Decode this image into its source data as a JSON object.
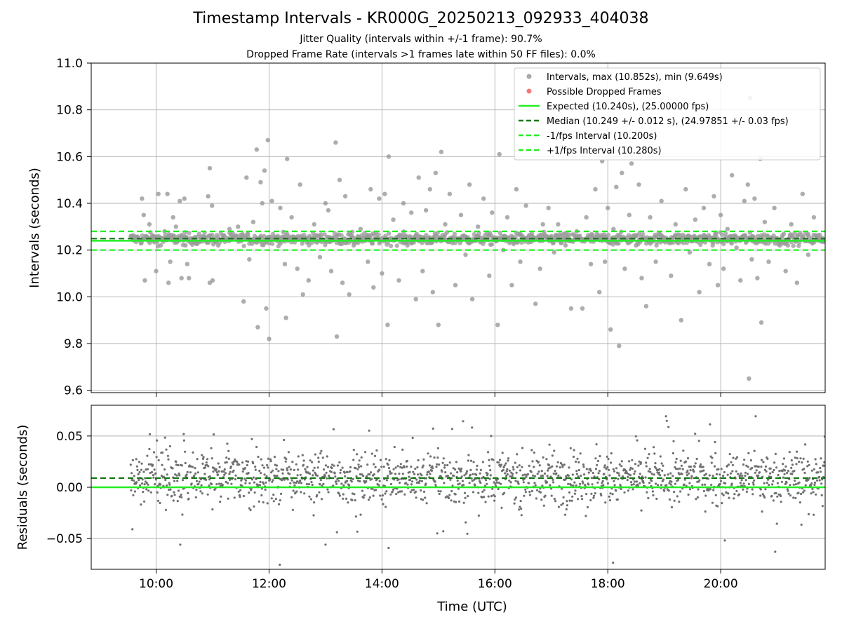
{
  "title": "Timestamp Intervals - KR000G_20250213_092933_404038",
  "subtitle_line1": "Jitter Quality (intervals within +/-1 frame): 90.7%",
  "subtitle_line2": "Dropped Frame Rate (intervals >1 frames late within 50 FF files): 0.0%",
  "colors": {
    "intervals": "#999999",
    "dropped": "#f06060",
    "expected": "#22ee22",
    "median": "#137a13",
    "fps_interval": "#22ee22",
    "residuals": "#707070"
  },
  "chart_data": [
    {
      "type": "scatter",
      "name": "intervals-panel",
      "ylabel": "Intervals (seconds)",
      "xlabel": "",
      "x_unit": "hours UTC",
      "xlim": [
        8.85,
        21.85
      ],
      "ylim": [
        9.59,
        11.0
      ],
      "x_ticks": [
        10,
        12,
        14,
        16,
        18,
        20
      ],
      "x_tick_labels": [
        "10:00",
        "12:00",
        "14:00",
        "16:00",
        "18:00",
        "20:00"
      ],
      "y_ticks": [
        9.6,
        9.8,
        10.0,
        10.2,
        10.4,
        10.6,
        10.8,
        11.0
      ],
      "y_tick_labels": [
        "9.6",
        "9.8",
        "10.0",
        "10.2",
        "10.4",
        "10.6",
        "10.8",
        "11.0"
      ],
      "grid": true,
      "legend_position": "top-right",
      "legend": [
        {
          "label": "Intervals, max (10.852s), min (9.649s)",
          "kind": "dot",
          "color": "#999999"
        },
        {
          "label": "Possible Dropped Frames",
          "kind": "dot",
          "color": "#f06060"
        },
        {
          "label": "Expected (10.240s), (25.00000 fps)",
          "kind": "line",
          "color": "#22ee22",
          "dash": false
        },
        {
          "label": "Median (10.249 +/- 0.012 s), (24.97851 +/- 0.03 fps)",
          "kind": "line",
          "color": "#137a13",
          "dash": true
        },
        {
          "label": "-1/fps Interval (10.200s)",
          "kind": "line",
          "color": "#22ee22",
          "dash": true
        },
        {
          "label": "+1/fps Interval (10.280s)",
          "kind": "line",
          "color": "#22ee22",
          "dash": true
        }
      ],
      "reference_lines": {
        "expected": 10.24,
        "median": 10.249,
        "minus_fps": 10.2,
        "plus_fps": 10.28
      },
      "series_summary": {
        "x_start": 9.55,
        "x_end": 21.85,
        "max": 10.852,
        "min": 9.649,
        "dense_band": [
          10.215,
          10.28
        ]
      },
      "outliers": [
        [
          9.75,
          10.42
        ],
        [
          9.78,
          10.35
        ],
        [
          9.8,
          10.07
        ],
        [
          9.88,
          10.31
        ],
        [
          9.95,
          10.26
        ],
        [
          10.0,
          10.11
        ],
        [
          10.04,
          10.44
        ],
        [
          10.08,
          10.22
        ],
        [
          10.15,
          10.28
        ],
        [
          10.2,
          10.44
        ],
        [
          10.22,
          10.06
        ],
        [
          10.25,
          10.15
        ],
        [
          10.3,
          10.34
        ],
        [
          10.35,
          10.3
        ],
        [
          10.42,
          10.41
        ],
        [
          10.45,
          10.08
        ],
        [
          10.5,
          10.42
        ],
        [
          10.52,
          10.22
        ],
        [
          10.55,
          10.14
        ],
        [
          10.58,
          10.08
        ],
        [
          10.92,
          10.43
        ],
        [
          10.95,
          10.06
        ],
        [
          10.95,
          10.55
        ],
        [
          10.99,
          10.39
        ],
        [
          11.0,
          10.07
        ],
        [
          11.1,
          10.22
        ],
        [
          11.3,
          10.29
        ],
        [
          11.45,
          10.3
        ],
        [
          11.55,
          9.98
        ],
        [
          11.6,
          10.51
        ],
        [
          11.65,
          10.16
        ],
        [
          11.72,
          10.32
        ],
        [
          11.78,
          10.63
        ],
        [
          11.8,
          9.87
        ],
        [
          11.85,
          10.49
        ],
        [
          11.88,
          10.4
        ],
        [
          11.92,
          10.54
        ],
        [
          11.95,
          9.95
        ],
        [
          11.98,
          10.67
        ],
        [
          12.0,
          9.82
        ],
        [
          12.05,
          10.41
        ],
        [
          12.15,
          10.25
        ],
        [
          12.2,
          10.38
        ],
        [
          12.28,
          10.14
        ],
        [
          12.3,
          9.91
        ],
        [
          12.32,
          10.59
        ],
        [
          12.4,
          10.34
        ],
        [
          12.5,
          10.12
        ],
        [
          12.55,
          10.48
        ],
        [
          12.6,
          10.01
        ],
        [
          12.7,
          10.07
        ],
        [
          12.8,
          10.31
        ],
        [
          12.9,
          10.17
        ],
        [
          13.0,
          10.4
        ],
        [
          13.05,
          10.37
        ],
        [
          13.1,
          10.11
        ],
        [
          13.18,
          10.66
        ],
        [
          13.2,
          9.83
        ],
        [
          13.25,
          10.5
        ],
        [
          13.3,
          10.06
        ],
        [
          13.35,
          10.43
        ],
        [
          13.42,
          10.01
        ],
        [
          13.5,
          10.22
        ],
        [
          13.62,
          10.29
        ],
        [
          13.75,
          10.15
        ],
        [
          13.8,
          10.46
        ],
        [
          13.85,
          10.04
        ],
        [
          13.95,
          10.42
        ],
        [
          14.0,
          10.1
        ],
        [
          14.05,
          10.44
        ],
        [
          14.1,
          9.88
        ],
        [
          14.12,
          10.6
        ],
        [
          14.2,
          10.33
        ],
        [
          14.3,
          10.07
        ],
        [
          14.38,
          10.4
        ],
        [
          14.45,
          10.22
        ],
        [
          14.52,
          10.36
        ],
        [
          14.6,
          9.99
        ],
        [
          14.65,
          10.51
        ],
        [
          14.72,
          10.11
        ],
        [
          14.78,
          10.37
        ],
        [
          14.85,
          10.46
        ],
        [
          14.9,
          10.02
        ],
        [
          14.95,
          10.53
        ],
        [
          15.0,
          9.88
        ],
        [
          15.05,
          10.62
        ],
        [
          15.12,
          10.31
        ],
        [
          15.2,
          10.44
        ],
        [
          15.3,
          10.05
        ],
        [
          15.4,
          10.35
        ],
        [
          15.48,
          10.18
        ],
        [
          15.55,
          10.48
        ],
        [
          15.6,
          9.99
        ],
        [
          15.7,
          10.3
        ],
        [
          15.8,
          10.42
        ],
        [
          15.9,
          10.09
        ],
        [
          15.95,
          10.36
        ],
        [
          16.05,
          9.88
        ],
        [
          16.08,
          10.61
        ],
        [
          16.15,
          10.2
        ],
        [
          16.22,
          10.34
        ],
        [
          16.3,
          10.05
        ],
        [
          16.38,
          10.46
        ],
        [
          16.45,
          10.15
        ],
        [
          16.55,
          10.39
        ],
        [
          16.62,
          10.24
        ],
        [
          16.72,
          9.97
        ],
        [
          16.8,
          10.12
        ],
        [
          16.85,
          10.31
        ],
        [
          16.95,
          10.38
        ],
        [
          17.05,
          10.19
        ],
        [
          17.12,
          10.31
        ],
        [
          17.18,
          10.64
        ],
        [
          17.25,
          10.22
        ],
        [
          17.35,
          9.95
        ],
        [
          17.45,
          10.28
        ],
        [
          17.55,
          9.95
        ],
        [
          17.62,
          10.34
        ],
        [
          17.7,
          10.14
        ],
        [
          17.78,
          10.46
        ],
        [
          17.85,
          10.02
        ],
        [
          17.9,
          10.58
        ],
        [
          17.95,
          10.15
        ],
        [
          18.0,
          10.38
        ],
        [
          18.05,
          9.86
        ],
        [
          18.1,
          10.29
        ],
        [
          18.15,
          10.47
        ],
        [
          18.2,
          9.79
        ],
        [
          18.25,
          10.53
        ],
        [
          18.3,
          10.12
        ],
        [
          18.38,
          10.35
        ],
        [
          18.42,
          10.57
        ],
        [
          18.5,
          10.22
        ],
        [
          18.55,
          10.48
        ],
        [
          18.6,
          10.08
        ],
        [
          18.68,
          9.96
        ],
        [
          18.75,
          10.34
        ],
        [
          18.85,
          10.15
        ],
        [
          18.95,
          10.41
        ],
        [
          19.05,
          10.24
        ],
        [
          19.12,
          10.09
        ],
        [
          19.2,
          10.31
        ],
        [
          19.3,
          9.9
        ],
        [
          19.38,
          10.46
        ],
        [
          19.45,
          10.19
        ],
        [
          19.55,
          10.33
        ],
        [
          19.62,
          10.02
        ],
        [
          19.7,
          10.38
        ],
        [
          19.8,
          10.14
        ],
        [
          19.88,
          10.43
        ],
        [
          19.95,
          10.05
        ],
        [
          20.0,
          10.35
        ],
        [
          20.05,
          10.12
        ],
        [
          20.12,
          10.29
        ],
        [
          20.2,
          10.52
        ],
        [
          20.28,
          10.21
        ],
        [
          20.35,
          10.07
        ],
        [
          20.42,
          10.41
        ],
        [
          20.48,
          10.48
        ],
        [
          20.5,
          9.65
        ],
        [
          20.52,
          10.85
        ],
        [
          20.55,
          10.16
        ],
        [
          20.6,
          10.42
        ],
        [
          20.65,
          10.08
        ],
        [
          20.7,
          10.59
        ],
        [
          20.72,
          9.89
        ],
        [
          20.78,
          10.32
        ],
        [
          20.85,
          10.15
        ],
        [
          20.95,
          10.38
        ],
        [
          21.05,
          10.22
        ],
        [
          21.15,
          10.11
        ],
        [
          21.25,
          10.31
        ],
        [
          21.35,
          10.06
        ],
        [
          21.45,
          10.44
        ],
        [
          21.55,
          10.18
        ],
        [
          21.65,
          10.34
        ],
        [
          21.75,
          10.24
        ]
      ]
    },
    {
      "type": "scatter",
      "name": "residuals-panel",
      "ylabel": "Residuals (seconds)",
      "xlabel": "Time (UTC)",
      "xlim": [
        8.85,
        21.85
      ],
      "ylim": [
        -0.08,
        0.08
      ],
      "x_ticks": [
        10,
        12,
        14,
        16,
        18,
        20
      ],
      "x_tick_labels": [
        "10:00",
        "12:00",
        "14:00",
        "16:00",
        "18:00",
        "20:00"
      ],
      "y_ticks": [
        -0.05,
        0.0,
        0.05
      ],
      "y_tick_labels": [
        "−0.05",
        "0.00",
        "0.05"
      ],
      "grid": true,
      "reference_lines": {
        "zero": 0.0,
        "median_offset": 0.009
      },
      "series_summary": {
        "x_start": 9.55,
        "x_end": 21.85,
        "center": 0.009,
        "typical_spread": 0.02
      }
    }
  ]
}
